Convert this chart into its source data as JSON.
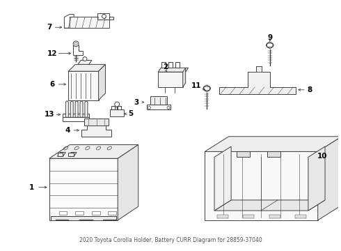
{
  "title": "2020 Toyota Corolla Holder, Battery CURR Diagram for 28859-37040",
  "bg_color": "#ffffff",
  "line_color": "#404040",
  "label_color": "#000000",
  "figsize": [
    4.9,
    3.6
  ],
  "dpi": 100
}
